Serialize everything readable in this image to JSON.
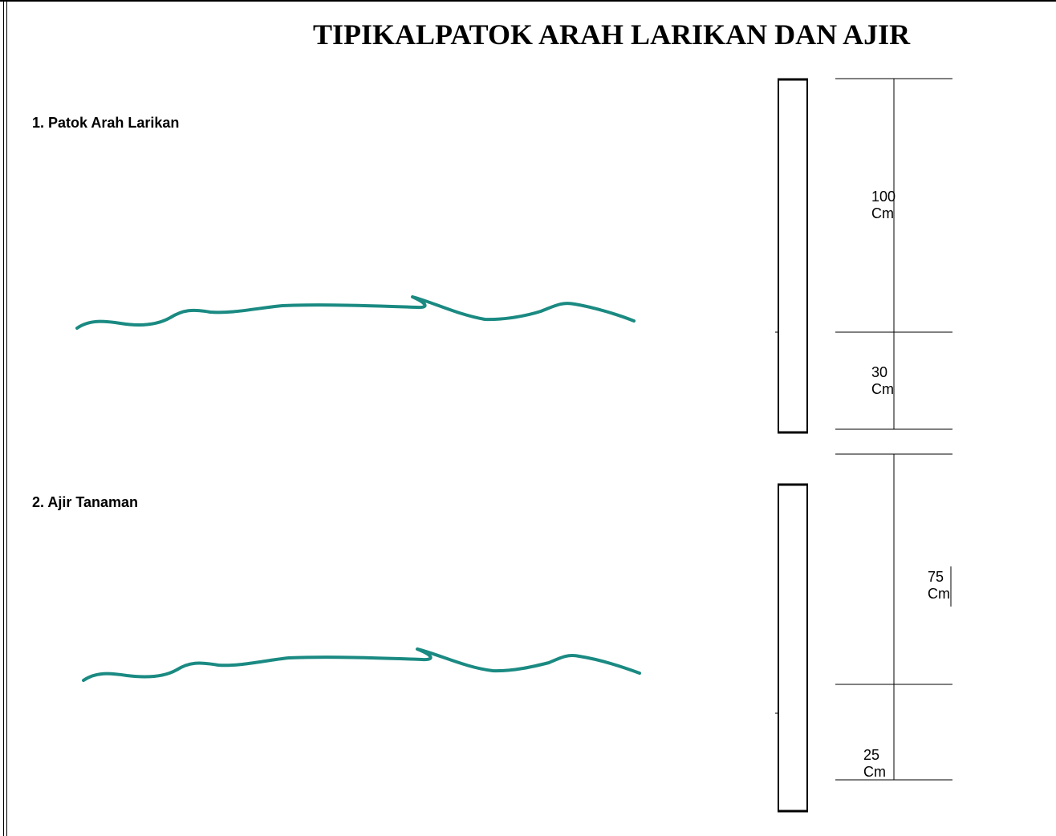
{
  "title": "TIPIKALPATOK ARAH LARIKAN DAN AJIR",
  "sections": [
    {
      "label": "1. Patok Arah Larikan",
      "dims": [
        {
          "value": "100",
          "unit": "Cm"
        },
        {
          "value": "30",
          "unit": "Cm"
        }
      ]
    },
    {
      "label": "2. Ajir Tanaman",
      "dims": [
        {
          "value": "75",
          "unit": "Cm"
        },
        {
          "value": "25",
          "unit": "Cm"
        }
      ]
    }
  ],
  "colors": {
    "ground_line": "#1a8a82",
    "ink": "#000000"
  }
}
